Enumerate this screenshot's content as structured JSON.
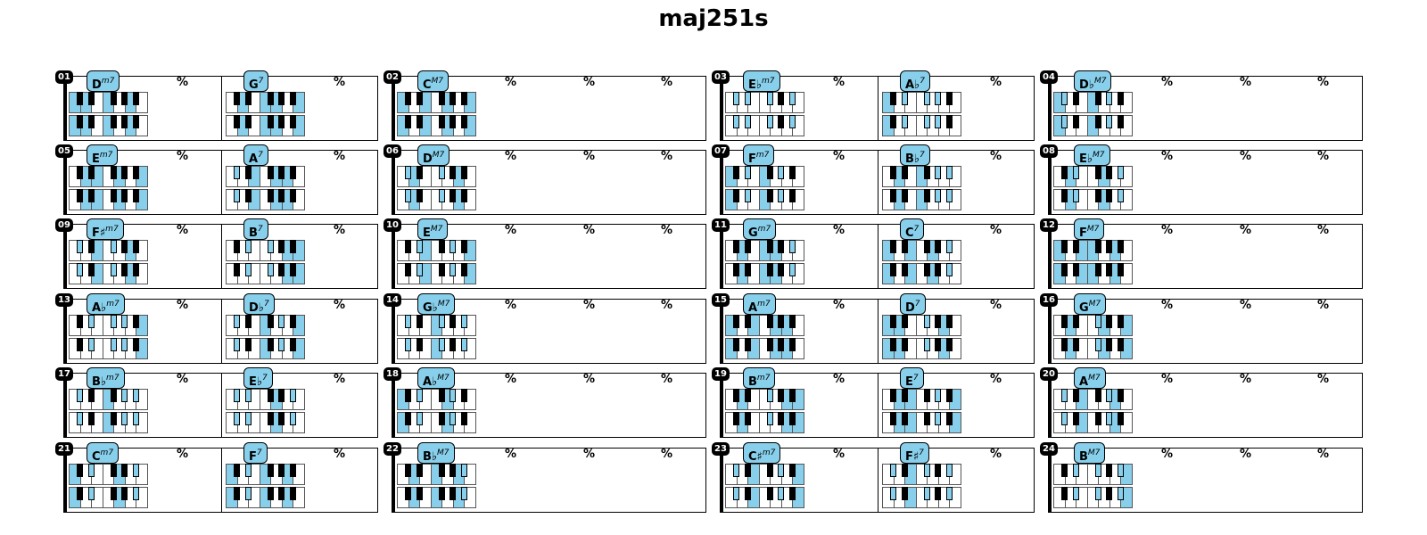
{
  "title": "maj251s",
  "highlight_color": "#87cfeb",
  "simile_mark": "%",
  "lines": [
    {
      "items": [
        {
          "num": "01",
          "chords": [
            {
              "root": "D",
              "q": "m7",
              "top": [
                2,
                5,
                9,
                12
              ],
              "bot": [
                2,
                5,
                9,
                12
              ]
            },
            {
              "root": "G",
              "q": "7",
              "top": [
                7,
                11,
                14,
                17
              ],
              "bot": [
                7,
                11,
                14,
                17
              ]
            }
          ]
        },
        {
          "num": "02",
          "chords": [
            {
              "root": "C",
              "q": "M7",
              "top": [
                0,
                4,
                7,
                11
              ],
              "bot": [
                0,
                4,
                7,
                11
              ]
            }
          ]
        },
        {
          "num": "03",
          "chords": [
            {
              "root": "E♭",
              "q": "m7",
              "top": [
                3,
                6,
                10,
                13
              ],
              "bot": [
                3,
                6,
                10,
                13
              ]
            },
            {
              "root": "A♭",
              "q": "7",
              "top": [
                8,
                12,
                15,
                18
              ],
              "bot": [
                8,
                12,
                15,
                18
              ]
            }
          ]
        },
        {
          "num": "04",
          "chords": [
            {
              "root": "D♭",
              "q": "M7",
              "top": [
                1,
                5,
                8,
                12
              ],
              "bot": [
                1,
                5,
                8,
                12
              ]
            }
          ]
        }
      ]
    },
    {
      "items": [
        {
          "num": "05",
          "chords": [
            {
              "root": "E",
              "q": "m7",
              "top": [
                4,
                7,
                11,
                14
              ],
              "bot": [
                4,
                7,
                11,
                14
              ]
            },
            {
              "root": "A",
              "q": "7",
              "top": [
                9,
                13,
                16,
                19
              ],
              "bot": [
                9,
                13,
                16,
                19
              ]
            }
          ]
        },
        {
          "num": "06",
          "chords": [
            {
              "root": "D",
              "q": "M7",
              "top": [
                2,
                6,
                9,
                13
              ],
              "bot": [
                2,
                6,
                9,
                13
              ]
            }
          ]
        },
        {
          "num": "07",
          "chords": [
            {
              "root": "F",
              "q": "m7",
              "top": [
                5,
                8,
                12,
                15
              ],
              "bot": [
                5,
                8,
                12,
                15
              ]
            },
            {
              "root": "B♭",
              "q": "7",
              "top": [
                10,
                14,
                17,
                20
              ],
              "bot": [
                10,
                14,
                17,
                20
              ]
            }
          ]
        },
        {
          "num": "08",
          "chords": [
            {
              "root": "E♭",
              "q": "M7",
              "top": [
                3,
                7,
                10,
                14
              ],
              "bot": [
                3,
                7,
                10,
                14
              ]
            }
          ]
        }
      ]
    },
    {
      "items": [
        {
          "num": "09",
          "chords": [
            {
              "root": "F♯",
              "q": "m7",
              "top": [
                6,
                9,
                13,
                16
              ],
              "bot": [
                6,
                9,
                13,
                16
              ]
            },
            {
              "root": "B",
              "q": "7",
              "top": [
                11,
                15,
                18,
                21
              ],
              "bot": [
                11,
                15,
                18,
                21
              ]
            }
          ]
        },
        {
          "num": "10",
          "chords": [
            {
              "root": "E",
              "q": "M7",
              "top": [
                4,
                8,
                11,
                15
              ],
              "bot": [
                4,
                8,
                11,
                15
              ]
            }
          ]
        },
        {
          "num": "11",
          "chords": [
            {
              "root": "G",
              "q": "m7",
              "top": [
                7,
                10,
                14,
                17
              ],
              "bot": [
                7,
                10,
                14,
                17
              ]
            },
            {
              "root": "C",
              "q": "7",
              "top": [
                0,
                4,
                7,
                10
              ],
              "bot": [
                0,
                4,
                7,
                10
              ]
            }
          ]
        },
        {
          "num": "12",
          "chords": [
            {
              "root": "F",
              "q": "M7",
              "top": [
                5,
                9,
                12,
                16
              ],
              "bot": [
                5,
                9,
                12,
                16
              ]
            }
          ]
        }
      ]
    },
    {
      "items": [
        {
          "num": "13",
          "chords": [
            {
              "root": "A♭",
              "q": "m7",
              "top": [
                8,
                11,
                15,
                18
              ],
              "bot": [
                8,
                11,
                15,
                18
              ]
            },
            {
              "root": "D♭",
              "q": "7",
              "top": [
                1,
                5,
                8,
                11
              ],
              "bot": [
                1,
                5,
                8,
                11
              ]
            }
          ]
        },
        {
          "num": "14",
          "chords": [
            {
              "root": "G♭",
              "q": "M7",
              "top": [
                6,
                10,
                13,
                17
              ],
              "bot": [
                6,
                10,
                13,
                17
              ]
            }
          ]
        },
        {
          "num": "15",
          "chords": [
            {
              "root": "A",
              "q": "m7",
              "top": [
                9,
                12,
                16,
                19
              ],
              "bot": [
                9,
                12,
                16,
                19
              ]
            },
            {
              "root": "D",
              "q": "7",
              "top": [
                2,
                6,
                9,
                12
              ],
              "bot": [
                2,
                6,
                9,
                12
              ]
            }
          ]
        },
        {
          "num": "16",
          "chords": [
            {
              "root": "G",
              "q": "M7",
              "top": [
                7,
                11,
                14,
                18
              ],
              "bot": [
                7,
                11,
                14,
                18
              ]
            }
          ]
        }
      ]
    },
    {
      "items": [
        {
          "num": "17",
          "chords": [
            {
              "root": "B♭",
              "q": "m7",
              "top": [
                10,
                13,
                17,
                20
              ],
              "bot": [
                10,
                13,
                17,
                20
              ]
            },
            {
              "root": "E♭",
              "q": "7",
              "top": [
                3,
                7,
                10,
                13
              ],
              "bot": [
                3,
                7,
                10,
                13
              ]
            }
          ]
        },
        {
          "num": "18",
          "chords": [
            {
              "root": "A♭",
              "q": "M7",
              "top": [
                8,
                12,
                15,
                19
              ],
              "bot": [
                8,
                12,
                15,
                19
              ]
            }
          ]
        },
        {
          "num": "19",
          "chords": [
            {
              "root": "B",
              "q": "m7",
              "top": [
                11,
                14,
                18,
                21
              ],
              "bot": [
                11,
                14,
                18,
                21
              ]
            },
            {
              "root": "E",
              "q": "7",
              "top": [
                4,
                8,
                11,
                14
              ],
              "bot": [
                4,
                8,
                11,
                14
              ]
            }
          ]
        },
        {
          "num": "20",
          "chords": [
            {
              "root": "A",
              "q": "M7",
              "top": [
                9,
                13,
                16,
                20
              ],
              "bot": [
                9,
                13,
                16,
                20
              ]
            }
          ]
        }
      ]
    },
    {
      "items": [
        {
          "num": "21",
          "chords": [
            {
              "root": "C",
              "q": "m7",
              "top": [
                0,
                3,
                7,
                10
              ],
              "bot": [
                0,
                3,
                7,
                10
              ]
            },
            {
              "root": "F",
              "q": "7",
              "top": [
                5,
                9,
                12,
                15
              ],
              "bot": [
                5,
                9,
                12,
                15
              ]
            }
          ]
        },
        {
          "num": "22",
          "chords": [
            {
              "root": "B♭",
              "q": "M7",
              "top": [
                10,
                14,
                17,
                21
              ],
              "bot": [
                10,
                14,
                17,
                21
              ]
            }
          ]
        },
        {
          "num": "23",
          "chords": [
            {
              "root": "C♯",
              "q": "m7",
              "top": [
                1,
                4,
                8,
                11
              ],
              "bot": [
                1,
                4,
                8,
                11
              ]
            },
            {
              "root": "F♯",
              "q": "7",
              "top": [
                6,
                10,
                13,
                16
              ],
              "bot": [
                6,
                10,
                13,
                16
              ]
            }
          ]
        },
        {
          "num": "24",
          "chords": [
            {
              "root": "B",
              "q": "M7",
              "top": [
                11,
                15,
                18,
                22
              ],
              "bot": [
                11,
                15,
                18,
                22
              ]
            }
          ]
        }
      ]
    }
  ]
}
